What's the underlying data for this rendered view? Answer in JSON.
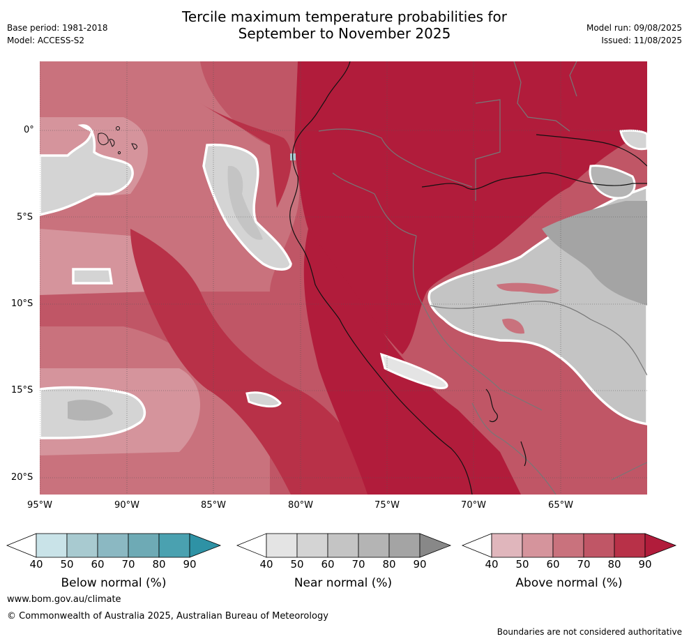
{
  "title_line1": "Tercile maximum temperature probabilities for",
  "title_line2": "September to November 2025",
  "base_period": "Base period: 1981-2018",
  "model": "Model: ACCESS-S2",
  "model_run": "Model run: 09/08/2025",
  "issued": "Issued: 11/08/2025",
  "lat_ticks": [
    "0°",
    "5°S",
    "10°S",
    "15°S",
    "20°S"
  ],
  "lon_ticks": [
    "95°W",
    "90°W",
    "85°W",
    "80°W",
    "75°W",
    "70°W",
    "65°W"
  ],
  "colorbars": [
    {
      "label": "Below normal (%)",
      "ticks": [
        "40",
        "50",
        "60",
        "70",
        "80",
        "90"
      ],
      "colors": [
        "#ffffff",
        "#c9e3e8",
        "#a8cad0",
        "#8bb8c2",
        "#6eaab5",
        "#4aa1b0",
        "#2e92a5"
      ]
    },
    {
      "label": "Near normal (%)",
      "ticks": [
        "40",
        "50",
        "60",
        "70",
        "80",
        "90"
      ],
      "colors": [
        "#ffffff",
        "#e4e4e4",
        "#d4d4d4",
        "#c4c4c4",
        "#b4b4b4",
        "#a4a4a4",
        "#888888"
      ]
    },
    {
      "label": "Above normal (%)",
      "ticks": [
        "40",
        "50",
        "60",
        "70",
        "80",
        "90"
      ],
      "colors": [
        "#ffffff",
        "#e0b6bc",
        "#d5949c",
        "#c9727d",
        "#c05666",
        "#b83148",
        "#b11c3b"
      ]
    }
  ],
  "footer_site": "www.bom.gov.au/climate",
  "footer_copyright": "© Commonwealth of Australia 2025, Australian Bureau of Meteorology",
  "footer_disclaimer": "Boundaries are not considered authoritative"
}
